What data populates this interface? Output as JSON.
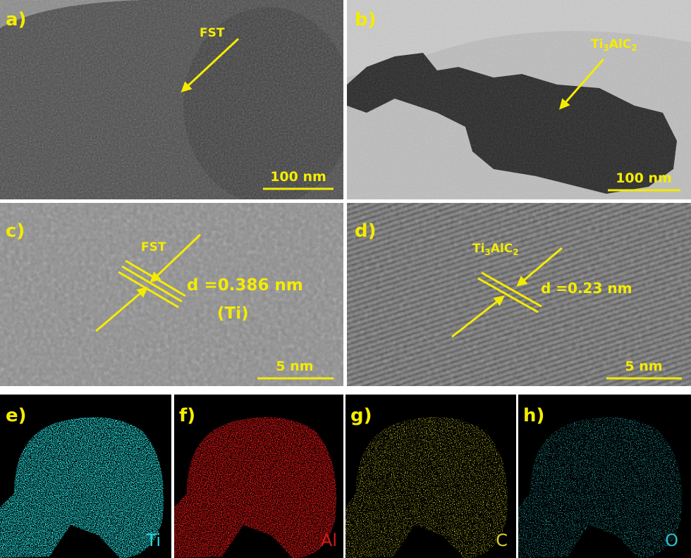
{
  "panels": [
    {
      "label": "a)",
      "annotation": "FST",
      "scale_bar": "100 nm"
    },
    {
      "label": "b)",
      "annotation_parts": [
        "Ti",
        "3",
        "AlC",
        "2"
      ],
      "scale_bar": "100 nm"
    },
    {
      "label": "c)",
      "annotation": "FST",
      "d_spacing": "d =0.386 nm",
      "element": "(Ti)",
      "scale_bar": "5 nm"
    },
    {
      "label": "d)",
      "annotation_parts": [
        "Ti",
        "3",
        "AlC",
        "2"
      ],
      "d_spacing": "d =0.23 nm",
      "scale_bar": "5 nm"
    }
  ],
  "eds_maps": [
    {
      "label": "e)",
      "element": "Ti"
    },
    {
      "label": "f)",
      "element": "Al"
    },
    {
      "label": "g)",
      "element": "C"
    },
    {
      "label": "h)",
      "element": "O"
    }
  ]
}
